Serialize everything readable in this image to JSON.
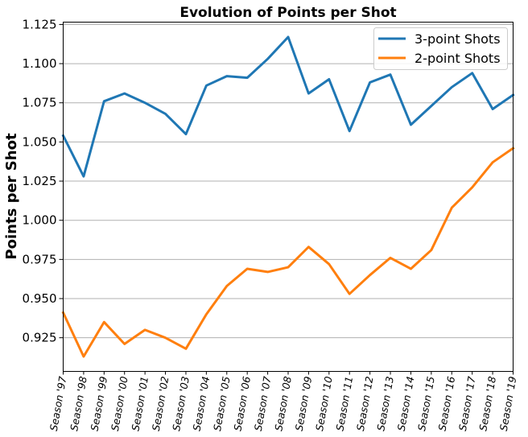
{
  "chart_data": {
    "type": "line",
    "title": "Evolution of Points per Shot",
    "xlabel": "",
    "ylabel": "Points per Shot",
    "categories": [
      "Season '97",
      "Season '98",
      "Season '99",
      "Season '00",
      "Season '01",
      "Season '02",
      "Season '03",
      "Season '04",
      "Season '05",
      "Season '06",
      "Season '07",
      "Season '08",
      "Season '09",
      "Season '10",
      "Season '11",
      "Season '12",
      "Season '13",
      "Season '14",
      "Season '15",
      "Season '16",
      "Season '17",
      "Season '18",
      "Season '19"
    ],
    "series": [
      {
        "name": "3-point Shots",
        "color": "#1f77b4",
        "values": [
          1.054,
          1.028,
          1.076,
          1.081,
          1.075,
          1.068,
          1.055,
          1.086,
          1.092,
          1.091,
          1.103,
          1.117,
          1.081,
          1.09,
          1.057,
          1.088,
          1.093,
          1.061,
          1.073,
          1.085,
          1.094,
          1.071,
          1.08
        ]
      },
      {
        "name": "2-point Shots",
        "color": "#ff7f0e",
        "values": [
          0.941,
          0.913,
          0.935,
          0.921,
          0.93,
          0.925,
          0.918,
          0.94,
          0.958,
          0.969,
          0.967,
          0.97,
          0.983,
          0.972,
          0.953,
          0.965,
          0.976,
          0.969,
          0.981,
          1.008,
          1.021,
          1.037,
          1.046
        ]
      }
    ],
    "ylim": [
      0.9035,
      1.1265
    ],
    "yticks": [
      0.925,
      0.95,
      0.975,
      1.0,
      1.025,
      1.05,
      1.075,
      1.1,
      1.125
    ],
    "ytick_labels": [
      "0.925",
      "0.950",
      "0.975",
      "1.000",
      "1.025",
      "1.050",
      "1.075",
      "1.100",
      "1.125"
    ],
    "grid": "y",
    "legend": "top-right"
  }
}
